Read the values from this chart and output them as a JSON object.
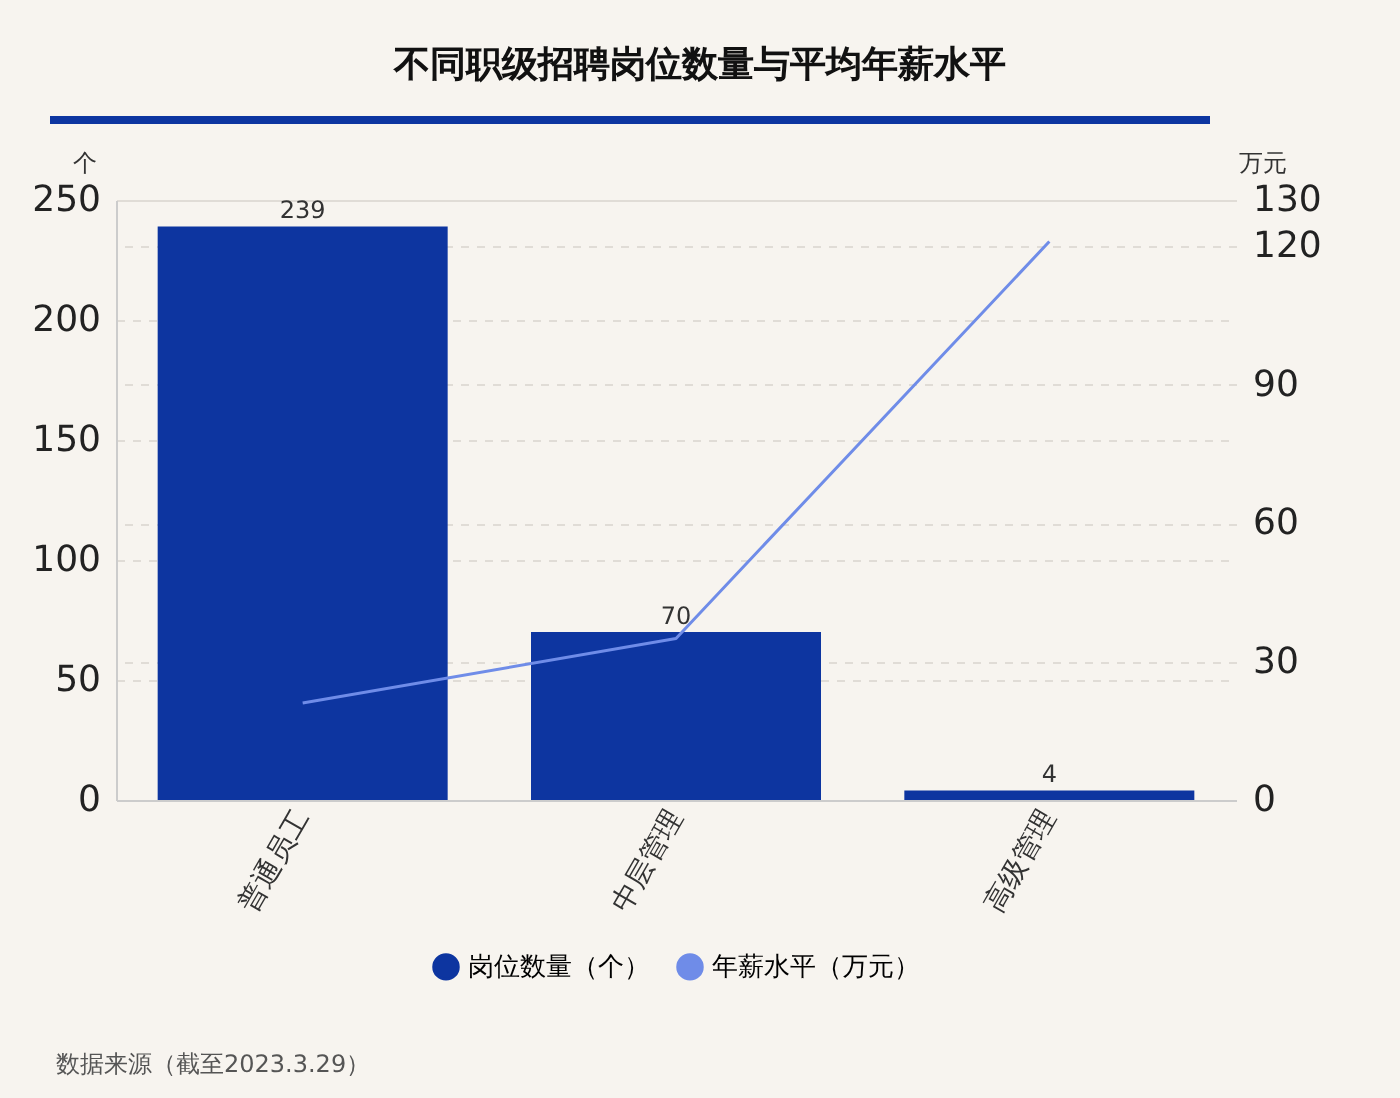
{
  "chart_data": {
    "type": "bar",
    "title": "不同职级招聘岗位数量与平均年薪水平",
    "categories": [
      "普通员工",
      "中层管理",
      "高级管理"
    ],
    "series": [
      {
        "name": "岗位数量（个）",
        "color": "#0d35a0",
        "values": [
          239,
          70,
          4
        ],
        "value_labels": [
          "239",
          "70",
          "4"
        ]
      },
      {
        "name": "年薪水平（万元）",
        "type": "line",
        "axis": "y2",
        "color": "#6f8ce8",
        "values": [
          21,
          35,
          121
        ]
      }
    ],
    "ylabel": "个",
    "y2label": "万元",
    "ylim": [
      0,
      250
    ],
    "yticks": [
      0,
      50,
      100,
      150,
      200,
      250
    ],
    "y2lim": [
      0,
      130
    ],
    "y2ticks": [
      0,
      30,
      60,
      90,
      120,
      130
    ],
    "grid": true,
    "legend": "bottom",
    "marker": "none",
    "annotations": [
      "数据来源（截至2023.3.29）"
    ]
  }
}
